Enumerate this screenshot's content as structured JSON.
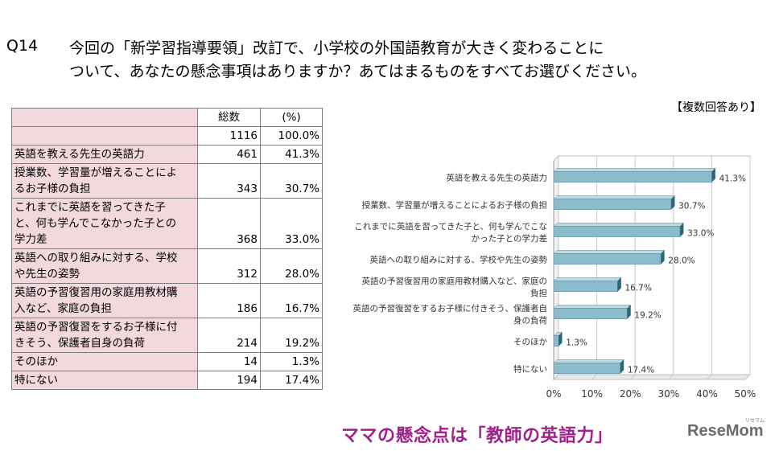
{
  "question": {
    "number": "Q14",
    "line1": "今回の「新学習指導要領」改訂で、小学校の外国語教育が大きく変わることに",
    "line2": "ついて、あなたの懸念事項はありますか？あてはまるものをすべてお選びください。"
  },
  "note": "【複数回答あり】",
  "table": {
    "col_count": "総数",
    "col_pct": "(%)",
    "total_count": "1116",
    "total_pct": "100.0%",
    "rows": [
      {
        "lines": [
          "英語を教える先生の英語力"
        ],
        "count": "461",
        "pct": "41.3%"
      },
      {
        "lines": [
          "授業数、学習量が増えることによ",
          "るお子様の負担"
        ],
        "count": "343",
        "pct": "30.7%"
      },
      {
        "lines": [
          "これまでに英語を習ってきた子",
          "と、何も学んでこなかった子との",
          "学力差"
        ],
        "count": "368",
        "pct": "33.0%"
      },
      {
        "lines": [
          "英語への取り組みに対する、学校",
          "や先生の姿勢"
        ],
        "count": "312",
        "pct": "28.0%"
      },
      {
        "lines": [
          "英語の予習復習用の家庭用教材購",
          "入など、家庭の負担"
        ],
        "count": "186",
        "pct": "16.7%"
      },
      {
        "lines": [
          "英語の予習復習をするお子様に付",
          "きそう、保護者自身の負荷"
        ],
        "count": "214",
        "pct": "19.2%"
      },
      {
        "lines": [
          "そのほか"
        ],
        "count": "14",
        "pct": "1.3%"
      },
      {
        "lines": [
          "特にない"
        ],
        "count": "194",
        "pct": "17.4%"
      }
    ]
  },
  "chart_data": {
    "type": "bar",
    "orientation": "horizontal",
    "title": "",
    "categories": [
      [
        "英語を教える先生の英語力"
      ],
      [
        "授業数、学習量が増えることによるお子様の負担"
      ],
      [
        "これまでに英語を習ってきた子と、何も学んでこな",
        "かった子との学力差"
      ],
      [
        "英語への取り組みに対する、学校や先生の姿勢"
      ],
      [
        "英語の予習復習用の家庭用教材購入など、家庭の",
        "負担"
      ],
      [
        "英語の予習復習をするお子様に付きそう、保護者自",
        "身の負荷"
      ],
      [
        "そのほか"
      ],
      [
        "特にない"
      ]
    ],
    "values": [
      41.3,
      30.7,
      33.0,
      28.0,
      16.7,
      19.2,
      1.3,
      17.4
    ],
    "value_labels": [
      "41.3%",
      "30.7%",
      "33.0%",
      "28.0%",
      "16.7%",
      "19.2%",
      "1.3%",
      "17.4%"
    ],
    "xlim": [
      0,
      50
    ],
    "xticks": [
      "0%",
      "10%",
      "20%",
      "30%",
      "40%",
      "50%"
    ],
    "grid": true,
    "bar_color": "#8bbccc",
    "bar_edge_color": "#3f7f93"
  },
  "headline": "ママの懸念点は「教師の英語力」",
  "logo": "ReseMom",
  "logo_sub": "リセマム"
}
